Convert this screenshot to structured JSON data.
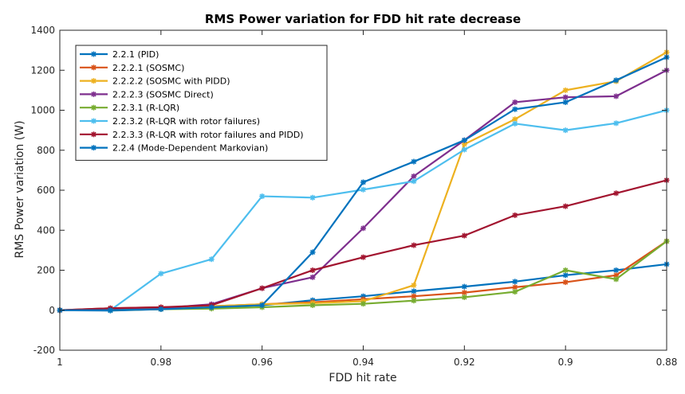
{
  "chart_data": {
    "type": "line",
    "title": "RMS Power variation for FDD hit rate decrease",
    "xlabel": "FDD hit rate",
    "ylabel": "RMS Power variation (W)",
    "xlim": [
      1,
      0.88
    ],
    "x_reversed": true,
    "ylim": [
      -200,
      1400
    ],
    "x_ticks": [
      "1",
      "0.98",
      "0.96",
      "0.94",
      "0.92",
      "0.9",
      "0.88"
    ],
    "y_ticks": [
      "-200",
      "0",
      "200",
      "400",
      "600",
      "800",
      "1000",
      "1200",
      "1400"
    ],
    "grid": false,
    "legend_position": "top-left",
    "x": [
      1,
      0.99,
      0.98,
      0.97,
      0.96,
      0.95,
      0.94,
      0.93,
      0.92,
      0.91,
      0.9,
      0.89,
      0.88
    ],
    "series": [
      {
        "name": "2.2.1 (PID)",
        "color": "#0072BD",
        "values": [
          0,
          -2,
          5,
          15,
          25,
          50,
          70,
          95,
          118,
          143,
          175,
          200,
          230
        ]
      },
      {
        "name": "2.2.2.1 (SOSMC)",
        "color": "#D95319",
        "values": [
          0,
          10,
          15,
          20,
          30,
          40,
          55,
          70,
          88,
          115,
          140,
          175,
          345
        ]
      },
      {
        "name": "2.2.2.2 (SOSMC with PIDD)",
        "color": "#EDB120",
        "values": [
          0,
          5,
          10,
          20,
          30,
          35,
          45,
          125,
          830,
          955,
          1100,
          1145,
          1290
        ]
      },
      {
        "name": "2.2.2.3 (SOSMC Direct)",
        "color": "#7E2F8E",
        "values": [
          0,
          5,
          10,
          30,
          110,
          165,
          410,
          670,
          850,
          1040,
          1065,
          1070,
          1200
        ]
      },
      {
        "name": "2.2.3.1 (R-LQR)",
        "color": "#77AC30",
        "values": [
          0,
          0,
          5,
          8,
          15,
          25,
          32,
          48,
          65,
          92,
          200,
          155,
          345
        ]
      },
      {
        "name": "2.2.3.2 (R-LQR with rotor failures)",
        "color": "#4DBEEE",
        "values": [
          0,
          0,
          183,
          255,
          570,
          563,
          603,
          645,
          803,
          933,
          900,
          935,
          1000
        ]
      },
      {
        "name": "2.2.3.3 (R-LQR with rotor failures and PIDD)",
        "color": "#A2142F",
        "values": [
          0,
          10,
          15,
          25,
          110,
          200,
          265,
          325,
          373,
          475,
          520,
          585,
          650
        ]
      },
      {
        "name": "2.2.4 (Mode-Dependent Markovian)",
        "color": "#0072BD",
        "values": [
          0,
          0,
          5,
          15,
          25,
          290,
          640,
          743,
          850,
          1005,
          1040,
          1150,
          1265
        ]
      }
    ]
  }
}
